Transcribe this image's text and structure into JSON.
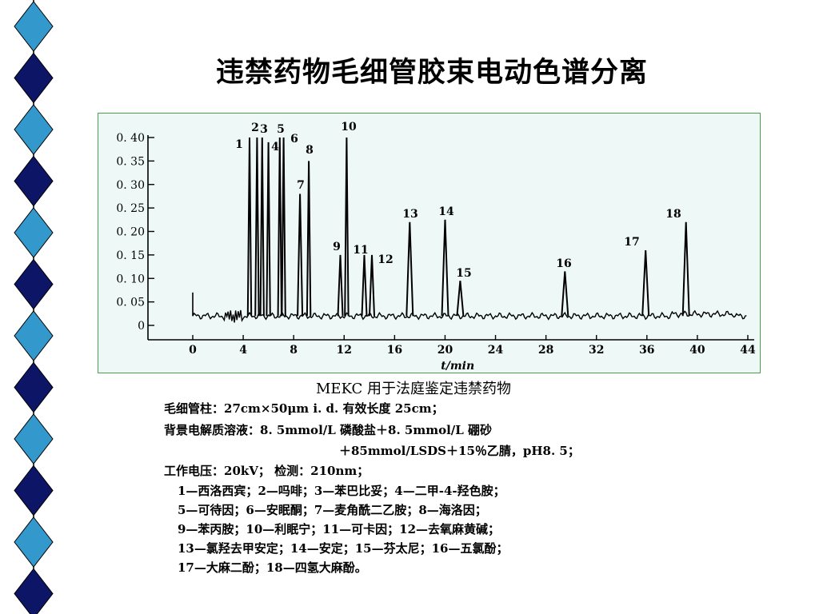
{
  "slide_title": "违禁药物毛细管胶束电动色谱分离",
  "colors": {
    "frame_border": "#4aa04a",
    "frame_background": "#eef8f6",
    "trace": "#000000",
    "diamond_light": "#3399cc",
    "diamond_dark": "#0d1566"
  },
  "chart_data": {
    "type": "line",
    "xlabel": "t/min",
    "ylabel": "",
    "xlim": [
      0,
      44
    ],
    "ylim": [
      0,
      0.4
    ],
    "x_ticks": [
      "0",
      "4",
      "8",
      "12",
      "16",
      "20",
      "24",
      "28",
      "32",
      "36",
      "40",
      "44"
    ],
    "y_ticks": [
      "0",
      "0. 05",
      "0. 10",
      "0. 15",
      "0. 20",
      "0. 25",
      "0. 30",
      "0. 35",
      "0. 40"
    ],
    "baseline": 0.02,
    "grid": false,
    "peaks": [
      {
        "label": "1",
        "t": 4.5,
        "height": 0.4
      },
      {
        "label": "2",
        "t": 5.1,
        "height": 0.4
      },
      {
        "label": "3",
        "t": 5.5,
        "height": 0.4
      },
      {
        "label": "4",
        "t": 6.0,
        "height": 0.39
      },
      {
        "label": "5",
        "t": 6.9,
        "height": 0.4
      },
      {
        "label": "6",
        "t": 7.2,
        "height": 0.4
      },
      {
        "label": "7",
        "t": 8.5,
        "height": 0.28
      },
      {
        "label": "8",
        "t": 9.2,
        "height": 0.35
      },
      {
        "label": "9",
        "t": 11.7,
        "height": 0.15
      },
      {
        "label": "10",
        "t": 12.2,
        "height": 0.4
      },
      {
        "label": "11",
        "t": 13.6,
        "height": 0.15
      },
      {
        "label": "12",
        "t": 14.2,
        "height": 0.15
      },
      {
        "label": "13",
        "t": 17.2,
        "height": 0.22
      },
      {
        "label": "14",
        "t": 20.0,
        "height": 0.225
      },
      {
        "label": "15",
        "t": 21.2,
        "height": 0.095
      },
      {
        "label": "16",
        "t": 29.5,
        "height": 0.115
      },
      {
        "label": "17",
        "t": 35.9,
        "height": 0.16
      },
      {
        "label": "18",
        "t": 39.1,
        "height": 0.22
      }
    ]
  },
  "caption": {
    "title": "MEKC 用于法庭鉴定违禁药物",
    "column": "毛细管柱：27cm×50μm i. d.  有效长度 25cm；",
    "bge_line1": "背景电解质溶液：8. 5mmol/L 磷酸盐＋8. 5mmol/L 硼砂",
    "bge_line2": "＋85mmol/LSDS＋15％乙腈，pH8. 5；",
    "voltage": "工作电压：20kV；   检测：210nm；"
  },
  "legend_lines": [
    "1—西洛西宾；2—吗啡；3—苯巴比妥；4—二甲-4-羟色胺；",
    "5—可待因；6—安眠酮；7—麦角酰二乙胺；8—海洛因；",
    "9—苯丙胺；10—利眠宁；11—可卡因；12—去氧麻黄碱；",
    "13—氯羟去甲安定；14—安定；15—芬太尼；16—五氯酚；",
    "17—大麻二酚；18—四氢大麻酚。"
  ]
}
